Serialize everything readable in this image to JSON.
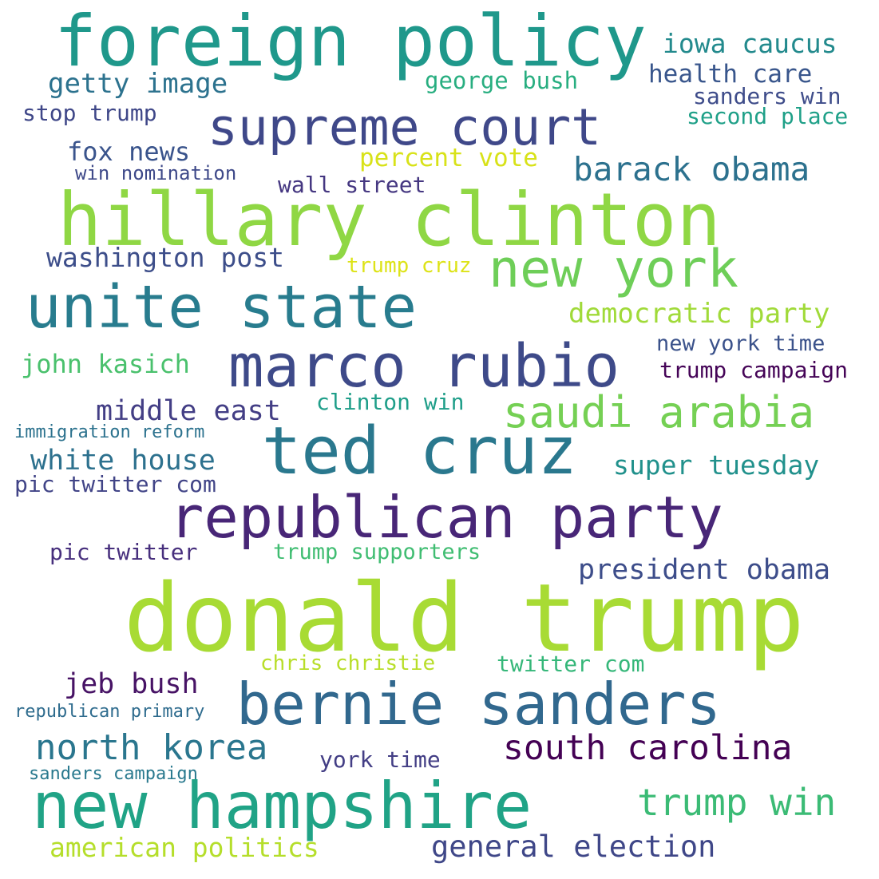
{
  "cloud": {
    "words": [
      {
        "text": "donald trump",
        "color": "#a8db34"
      },
      {
        "text": "hillary clinton",
        "color": "#8fd744"
      },
      {
        "text": "foreign policy",
        "color": "#1f988b"
      },
      {
        "text": "ted cruz",
        "color": "#2a788e"
      },
      {
        "text": "marco rubio",
        "color": "#3e4a89"
      },
      {
        "text": "bernie sanders",
        "color": "#31688e"
      },
      {
        "text": "new hampshire",
        "color": "#20a386"
      },
      {
        "text": "republican party",
        "color": "#482677"
      },
      {
        "text": "supreme court",
        "color": "#3f4889"
      },
      {
        "text": "unite state",
        "color": "#287c8e"
      },
      {
        "text": "new york",
        "color": "#6ece58"
      },
      {
        "text": "saudi arabia",
        "color": "#75d054"
      },
      {
        "text": "south carolina",
        "color": "#440154"
      },
      {
        "text": "trump win",
        "color": "#3bbb75"
      },
      {
        "text": "north korea",
        "color": "#2a768e"
      },
      {
        "text": "barack obama",
        "color": "#2c718e"
      },
      {
        "text": "president obama",
        "color": "#3d4d8a"
      },
      {
        "text": "general election",
        "color": "#3f4788"
      },
      {
        "text": "american politics",
        "color": "#b5de2b"
      },
      {
        "text": "democratic party",
        "color": "#a0da39"
      },
      {
        "text": "washington post",
        "color": "#3d4e8a"
      },
      {
        "text": "white house",
        "color": "#2d718e"
      },
      {
        "text": "middle east",
        "color": "#433e85"
      },
      {
        "text": "jeb bush",
        "color": "#471365"
      },
      {
        "text": "getty image",
        "color": "#2c728e"
      },
      {
        "text": "iowa caucus",
        "color": "#238a8d"
      },
      {
        "text": "super tuesday",
        "color": "#21918c"
      },
      {
        "text": "john kasich",
        "color": "#4ac16d"
      },
      {
        "text": "trump campaign",
        "color": "#450457"
      },
      {
        "text": "health care",
        "color": "#39568c"
      },
      {
        "text": "fox news",
        "color": "#3a548c"
      },
      {
        "text": "percent vote",
        "color": "#d8e219"
      },
      {
        "text": "george bush",
        "color": "#28ae80"
      },
      {
        "text": "new york time",
        "color": "#3b528b"
      },
      {
        "text": "pic twitter com",
        "color": "#414487"
      },
      {
        "text": "wall street",
        "color": "#453781"
      },
      {
        "text": "twitter com",
        "color": "#35b779"
      },
      {
        "text": "trump supporters",
        "color": "#40bd72"
      },
      {
        "text": "clinton win",
        "color": "#1f9e89"
      },
      {
        "text": "second place",
        "color": "#1fa088"
      },
      {
        "text": "sanders win",
        "color": "#3e4c8a"
      },
      {
        "text": "stop trump",
        "color": "#3f4788"
      },
      {
        "text": "pic twitter",
        "color": "#472f7d"
      },
      {
        "text": "york time",
        "color": "#433e85"
      },
      {
        "text": "trump cruz",
        "color": "#dde318"
      },
      {
        "text": "chris christie",
        "color": "#b8de29"
      },
      {
        "text": "win nomination",
        "color": "#3e4989"
      },
      {
        "text": "immigration reform",
        "color": "#2c728e"
      },
      {
        "text": "republican primary",
        "color": "#2f6c8e"
      },
      {
        "text": "sanders campaign",
        "color": "#29798e"
      }
    ]
  }
}
